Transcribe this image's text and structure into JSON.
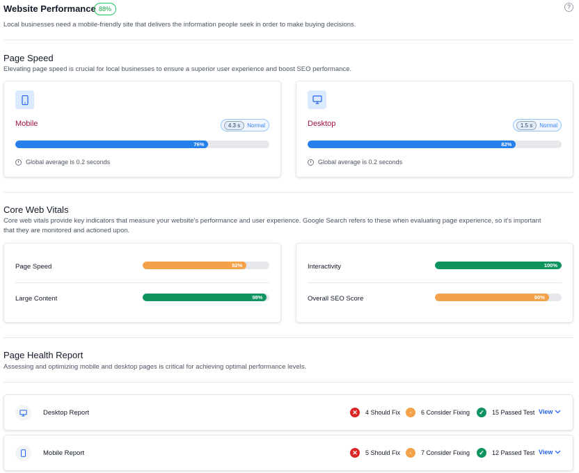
{
  "header": {
    "title": "Website Performance",
    "score": "88%",
    "help_icon": "question-circle-icon",
    "subtitle": "Local businesses need a mobile-friendly site that delivers the information people seek in order to make buying decisions."
  },
  "page_speed": {
    "title": "Page Speed",
    "subtitle": "Elevating page speed is crucial for local businesses to ensure a superior user experience and boost SEO performance.",
    "cards": [
      {
        "label": "Mobile",
        "icon": "mobile-icon",
        "time": "4.3 s",
        "status": "Normal",
        "percent": 76,
        "percent_label": "76%",
        "note": "Global average is 0.2 seconds"
      },
      {
        "label": "Desktop",
        "icon": "desktop-icon",
        "time": "1.5 s",
        "status": "Normal",
        "percent": 82,
        "percent_label": "82%",
        "note": "Global average is 0.2 seconds"
      }
    ]
  },
  "core_web_vitals": {
    "title": "Core Web Vitals",
    "subtitle_line1": "Core web vitals provide key indicators that measure your website's performance and user experience. Google Search refers to these when evaluating page experience, so it's important",
    "subtitle_line2": "that they are monitored and actioned upon.",
    "left": [
      {
        "label": "Page Speed",
        "percent": 82,
        "percent_label": "82%",
        "color": "#f4a24a"
      },
      {
        "label": "Large Content",
        "percent": 98,
        "percent_label": "98%",
        "color": "#0f9460"
      }
    ],
    "right": [
      {
        "label": "Interactivity",
        "percent": 100,
        "percent_label": "100%",
        "color": "#0f9460"
      },
      {
        "label": "Overall SEO Score",
        "percent": 90,
        "percent_label": "90%",
        "color": "#f4a24a"
      }
    ]
  },
  "page_health": {
    "title": "Page Health Report",
    "subtitle": "Assessing and optimizing mobile and desktop pages is critical for achieving optimal performance levels.",
    "reports": [
      {
        "label": "Desktop Report",
        "icon": "desktop-icon",
        "should_fix": "4 Should Fix",
        "consider": "6 Consider Fixing",
        "passed": "15 Passed Test",
        "view": "View"
      },
      {
        "label": "Mobile Report",
        "icon": "mobile-icon",
        "should_fix": "5 Should Fix",
        "consider": "7 Consider Fixing",
        "passed": "12 Passed Test",
        "view": "View"
      }
    ]
  },
  "colors": {
    "progress_blue": "#2680eb",
    "orange": "#f4a24a",
    "green": "#0f9460",
    "red": "#dc2626",
    "accent_label": "#9f1239"
  }
}
